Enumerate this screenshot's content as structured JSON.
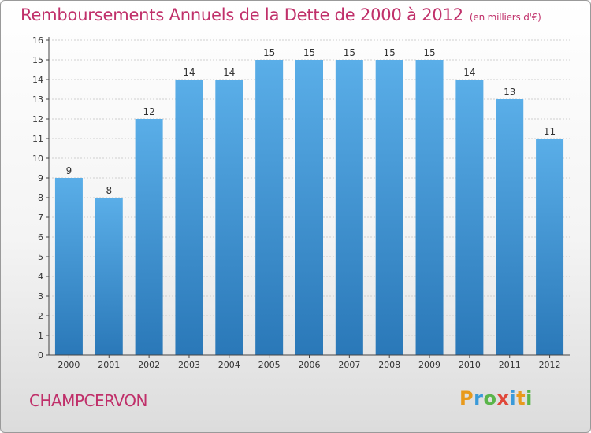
{
  "title": "Remboursements Annuels de la Dette de 2000 à 2012",
  "subtitle": "(en milliers d'€)",
  "city": "CHAMPCERVON",
  "logo": {
    "letters": [
      "P",
      "r",
      "o",
      "x",
      "i",
      "t",
      "i"
    ],
    "colors": [
      "#e89a1c",
      "#3a9ad9",
      "#5ab54a",
      "#e0483a",
      "#3a9ad9",
      "#e89a1c",
      "#5ab54a"
    ]
  },
  "colors": {
    "bar_top": "#5aaee8",
    "bar_bottom": "#2a78b8",
    "axis": "#444444",
    "grid": "#cfcfcf",
    "accent": "#c0306a"
  },
  "chart_data": {
    "type": "bar",
    "title": "Remboursements Annuels de la Dette de 2000 à 2012",
    "xlabel": "",
    "ylabel": "",
    "categories": [
      "2000",
      "2001",
      "2002",
      "2003",
      "2004",
      "2005",
      "2006",
      "2007",
      "2008",
      "2009",
      "2010",
      "2011",
      "2012"
    ],
    "values": [
      9,
      8,
      12,
      14,
      14,
      15,
      15,
      15,
      15,
      15,
      14,
      13,
      11
    ],
    "ylim": [
      0,
      16
    ],
    "yticks": [
      0,
      1,
      2,
      3,
      4,
      5,
      6,
      7,
      8,
      9,
      10,
      11,
      12,
      13,
      14,
      15,
      16
    ],
    "grid": true
  }
}
